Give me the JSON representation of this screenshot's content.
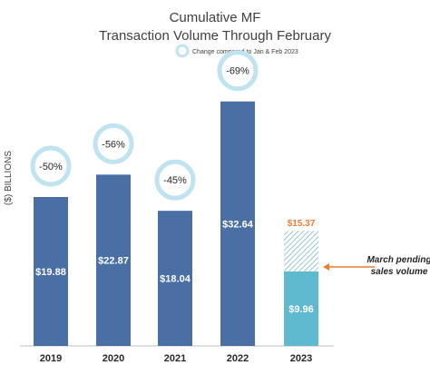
{
  "chart_data": {
    "type": "bar",
    "title": "Cumulative MF",
    "subtitle": "Transaction Volume Through February",
    "ylabel": "($) BILLIONS",
    "ylim": [
      0,
      36
    ],
    "grid": false,
    "legend": {
      "label": "Change compared to Jan & Feb 2023",
      "position": "top-center"
    },
    "categories": [
      "2019",
      "2020",
      "2021",
      "2022",
      "2023"
    ],
    "values": [
      19.88,
      22.87,
      18.04,
      32.64,
      9.96
    ],
    "value_labels": [
      "$19.88",
      "$22.87",
      "$18.04",
      "$32.64",
      "$9.96"
    ],
    "change_labels": [
      "-50%",
      "-56%",
      "-45%",
      "-69%",
      ""
    ],
    "pending": {
      "category": "2023",
      "total": 15.37,
      "total_label": "$15.37",
      "annotation_line1": "March pending",
      "annotation_line2": "sales volume"
    },
    "colors": {
      "bar": "#4a6fa5",
      "current_bar": "#5fbad0",
      "pending_hatch": "#7fb8c9",
      "badge_ring": "#bfe3ef",
      "pending_total": "#ed7d31",
      "arrow": "#ed7d31"
    }
  }
}
